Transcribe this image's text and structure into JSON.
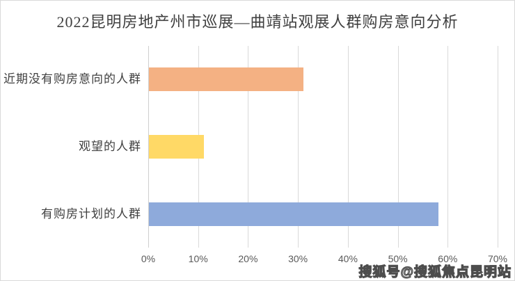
{
  "title": "2022昆明房地产州市巡展—曲靖站观展人群购房意向分析",
  "watermark": "搜狐号@搜狐焦点昆明站",
  "colors": {
    "frame_border": "#d9d9d9",
    "gridline": "#d9d9d9",
    "title_text": "#3f3f3f",
    "category_text": "#3f3f3f",
    "tick_text": "#595959",
    "watermark_fill": "#ffffff",
    "watermark_outline": "#4d4d4d"
  },
  "chart_data": {
    "type": "bar",
    "orientation": "horizontal",
    "title": "2022昆明房地产州市巡展—曲靖站观展人群购房意向分析",
    "categories": [
      "近期没有购房意向的人群",
      "观望的人群",
      "有购房计划的人群"
    ],
    "values": [
      31,
      11,
      58
    ],
    "unit": "%",
    "bar_colors": [
      "#f4b183",
      "#ffd966",
      "#8eaadb"
    ],
    "xlabel": "",
    "ylabel": "",
    "xlim": [
      0,
      70
    ],
    "x_ticks": [
      "0%",
      "10%",
      "20%",
      "30%",
      "40%",
      "50%",
      "60%",
      "70%"
    ],
    "grid": true,
    "grid_axis": "x",
    "legend": false,
    "category_order_top_to_bottom": true
  }
}
